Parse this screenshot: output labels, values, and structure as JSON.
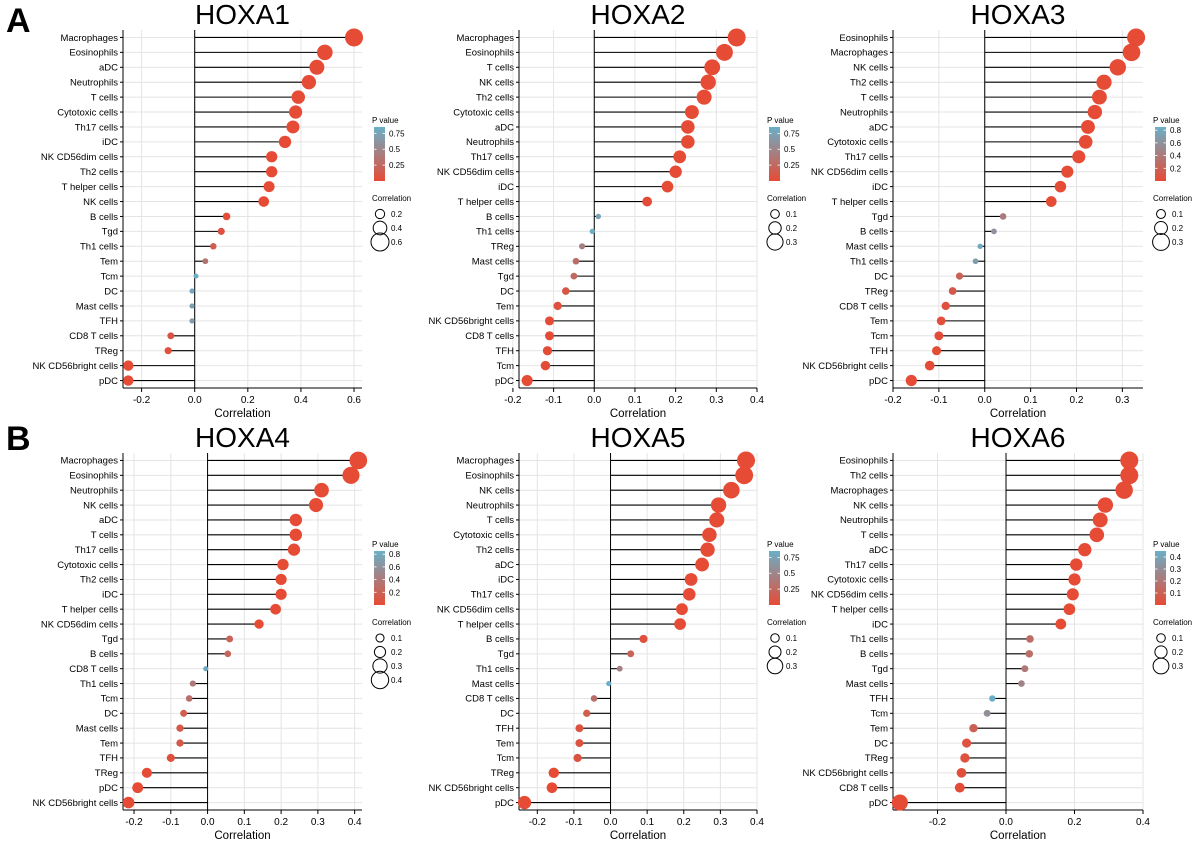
{
  "section_labels": [
    "A",
    "B"
  ],
  "p_value_legend_title": "P value",
  "correlation_legend_title": "Correlation",
  "colors": {
    "low_p": "#e64b35",
    "high_p": "#6aafc7",
    "stem": "#000000",
    "grid": "#e4e4e4"
  },
  "chart_data": [
    {
      "type": "lollipop",
      "title": "HOXA1",
      "xlabel": "Correlation",
      "xlim": [
        -0.27,
        0.63
      ],
      "xticks": [
        -0.2,
        0.0,
        0.2,
        0.4,
        0.6
      ],
      "pvalue_ticks": [
        0.75,
        0.5,
        0.25
      ],
      "pvalue_max": 0.85,
      "size_ticks": [
        0.2,
        0.4,
        0.6
      ],
      "size_max": 0.6,
      "points": [
        {
          "cell": "Macrophages",
          "correlation": 0.6,
          "p": 0.0
        },
        {
          "cell": "Eosinophils",
          "correlation": 0.49,
          "p": 0.0
        },
        {
          "cell": "aDC",
          "correlation": 0.46,
          "p": 0.0
        },
        {
          "cell": "Neutrophils",
          "correlation": 0.43,
          "p": 0.0
        },
        {
          "cell": "T cells",
          "correlation": 0.39,
          "p": 0.0
        },
        {
          "cell": "Cytotoxic cells",
          "correlation": 0.38,
          "p": 0.0
        },
        {
          "cell": "Th17 cells",
          "correlation": 0.37,
          "p": 0.0
        },
        {
          "cell": "iDC",
          "correlation": 0.34,
          "p": 0.0
        },
        {
          "cell": "NK CD56dim cells",
          "correlation": 0.29,
          "p": 0.0
        },
        {
          "cell": "Th2 cells",
          "correlation": 0.29,
          "p": 0.0
        },
        {
          "cell": "T helper cells",
          "correlation": 0.28,
          "p": 0.0
        },
        {
          "cell": "NK cells",
          "correlation": 0.26,
          "p": 0.0
        },
        {
          "cell": "B cells",
          "correlation": 0.12,
          "p": 0.02
        },
        {
          "cell": "Tgd",
          "correlation": 0.1,
          "p": 0.05
        },
        {
          "cell": "Th1 cells",
          "correlation": 0.07,
          "p": 0.15
        },
        {
          "cell": "Tem",
          "correlation": 0.04,
          "p": 0.35
        },
        {
          "cell": "Tcm",
          "correlation": 0.005,
          "p": 0.85
        },
        {
          "cell": "DC",
          "correlation": -0.01,
          "p": 0.78
        },
        {
          "cell": "Mast cells",
          "correlation": -0.01,
          "p": 0.72
        },
        {
          "cell": "TFH",
          "correlation": -0.01,
          "p": 0.68
        },
        {
          "cell": "CD8 T cells",
          "correlation": -0.09,
          "p": 0.08
        },
        {
          "cell": "TReg",
          "correlation": -0.1,
          "p": 0.04
        },
        {
          "cell": "NK CD56bright cells",
          "correlation": -0.25,
          "p": 0.0
        },
        {
          "cell": "pDC",
          "correlation": -0.25,
          "p": 0.0
        }
      ]
    },
    {
      "type": "lollipop",
      "title": "HOXA2",
      "xlabel": "Correlation",
      "xlim": [
        -0.185,
        0.4
      ],
      "xticks": [
        -0.2,
        -0.1,
        0.0,
        0.1,
        0.2,
        0.3,
        0.4
      ],
      "pvalue_ticks": [
        0.75,
        0.5,
        0.25
      ],
      "pvalue_max": 0.85,
      "size_ticks": [
        0.1,
        0.2,
        0.3
      ],
      "size_max": 0.35,
      "points": [
        {
          "cell": "Macrophages",
          "correlation": 0.35,
          "p": 0.0
        },
        {
          "cell": "Eosinophils",
          "correlation": 0.32,
          "p": 0.0
        },
        {
          "cell": "T cells",
          "correlation": 0.29,
          "p": 0.0
        },
        {
          "cell": "NK cells",
          "correlation": 0.28,
          "p": 0.0
        },
        {
          "cell": "Th2 cells",
          "correlation": 0.27,
          "p": 0.0
        },
        {
          "cell": "Cytotoxic cells",
          "correlation": 0.24,
          "p": 0.0
        },
        {
          "cell": "aDC",
          "correlation": 0.23,
          "p": 0.0
        },
        {
          "cell": "Neutrophils",
          "correlation": 0.23,
          "p": 0.0
        },
        {
          "cell": "Th17 cells",
          "correlation": 0.21,
          "p": 0.0
        },
        {
          "cell": "NK CD56dim cells",
          "correlation": 0.2,
          "p": 0.0
        },
        {
          "cell": "iDC",
          "correlation": 0.18,
          "p": 0.0
        },
        {
          "cell": "T helper cells",
          "correlation": 0.13,
          "p": 0.01
        },
        {
          "cell": "B cells",
          "correlation": 0.01,
          "p": 0.75
        },
        {
          "cell": "Th1 cells",
          "correlation": -0.005,
          "p": 0.85
        },
        {
          "cell": "TReg",
          "correlation": -0.03,
          "p": 0.45
        },
        {
          "cell": "Mast cells",
          "correlation": -0.045,
          "p": 0.3
        },
        {
          "cell": "Tgd",
          "correlation": -0.05,
          "p": 0.25
        },
        {
          "cell": "DC",
          "correlation": -0.07,
          "p": 0.1
        },
        {
          "cell": "Tem",
          "correlation": -0.09,
          "p": 0.05
        },
        {
          "cell": "NK CD56bright cells",
          "correlation": -0.11,
          "p": 0.01
        },
        {
          "cell": "CD8 T cells",
          "correlation": -0.11,
          "p": 0.01
        },
        {
          "cell": "TFH",
          "correlation": -0.115,
          "p": 0.01
        },
        {
          "cell": "Tcm",
          "correlation": -0.12,
          "p": 0.01
        },
        {
          "cell": "pDC",
          "correlation": -0.165,
          "p": 0.0
        }
      ]
    },
    {
      "type": "lollipop",
      "title": "HOXA3",
      "xlabel": "Correlation",
      "xlim": [
        -0.2,
        0.345
      ],
      "xticks": [
        -0.2,
        -0.1,
        0.0,
        0.1,
        0.2,
        0.3
      ],
      "pvalue_ticks": [
        0.8,
        0.6,
        0.4,
        0.2
      ],
      "pvalue_max": 0.85,
      "size_ticks": [
        0.1,
        0.2,
        0.3
      ],
      "size_max": 0.33,
      "points": [
        {
          "cell": "Eosinophils",
          "correlation": 0.33,
          "p": 0.0
        },
        {
          "cell": "Macrophages",
          "correlation": 0.32,
          "p": 0.0
        },
        {
          "cell": "NK cells",
          "correlation": 0.29,
          "p": 0.0
        },
        {
          "cell": "Th2 cells",
          "correlation": 0.26,
          "p": 0.0
        },
        {
          "cell": "T cells",
          "correlation": 0.25,
          "p": 0.0
        },
        {
          "cell": "Neutrophils",
          "correlation": 0.24,
          "p": 0.0
        },
        {
          "cell": "aDC",
          "correlation": 0.225,
          "p": 0.0
        },
        {
          "cell": "Cytotoxic cells",
          "correlation": 0.22,
          "p": 0.0
        },
        {
          "cell": "Th17 cells",
          "correlation": 0.205,
          "p": 0.0
        },
        {
          "cell": "NK CD56dim cells",
          "correlation": 0.18,
          "p": 0.0
        },
        {
          "cell": "iDC",
          "correlation": 0.165,
          "p": 0.0
        },
        {
          "cell": "T helper cells",
          "correlation": 0.145,
          "p": 0.0
        },
        {
          "cell": "Tgd",
          "correlation": 0.04,
          "p": 0.4
        },
        {
          "cell": "B cells",
          "correlation": 0.02,
          "p": 0.6
        },
        {
          "cell": "Mast cells",
          "correlation": -0.01,
          "p": 0.8
        },
        {
          "cell": "Th1 cells",
          "correlation": -0.02,
          "p": 0.7
        },
        {
          "cell": "DC",
          "correlation": -0.055,
          "p": 0.2
        },
        {
          "cell": "TReg",
          "correlation": -0.07,
          "p": 0.12
        },
        {
          "cell": "CD8 T cells",
          "correlation": -0.085,
          "p": 0.05
        },
        {
          "cell": "Tem",
          "correlation": -0.095,
          "p": 0.03
        },
        {
          "cell": "Tcm",
          "correlation": -0.1,
          "p": 0.02
        },
        {
          "cell": "TFH",
          "correlation": -0.105,
          "p": 0.02
        },
        {
          "cell": "NK CD56bright cells",
          "correlation": -0.12,
          "p": 0.01
        },
        {
          "cell": "pDC",
          "correlation": -0.16,
          "p": 0.0
        }
      ]
    },
    {
      "type": "lollipop",
      "title": "HOXA4",
      "xlabel": "Correlation",
      "xlim": [
        -0.23,
        0.42
      ],
      "xticks": [
        -0.2,
        -0.1,
        0.0,
        0.1,
        0.2,
        0.3,
        0.4
      ],
      "pvalue_ticks": [
        0.8,
        0.6,
        0.4,
        0.2
      ],
      "pvalue_max": 0.85,
      "size_ticks": [
        0.1,
        0.2,
        0.3,
        0.4
      ],
      "size_max": 0.42,
      "points": [
        {
          "cell": "Macrophages",
          "correlation": 0.41,
          "p": 0.0
        },
        {
          "cell": "Eosinophils",
          "correlation": 0.39,
          "p": 0.0
        },
        {
          "cell": "Neutrophils",
          "correlation": 0.31,
          "p": 0.0
        },
        {
          "cell": "NK cells",
          "correlation": 0.295,
          "p": 0.0
        },
        {
          "cell": "aDC",
          "correlation": 0.24,
          "p": 0.0
        },
        {
          "cell": "T cells",
          "correlation": 0.24,
          "p": 0.0
        },
        {
          "cell": "Th17 cells",
          "correlation": 0.235,
          "p": 0.0
        },
        {
          "cell": "Cytotoxic cells",
          "correlation": 0.205,
          "p": 0.0
        },
        {
          "cell": "Th2 cells",
          "correlation": 0.2,
          "p": 0.0
        },
        {
          "cell": "iDC",
          "correlation": 0.2,
          "p": 0.0
        },
        {
          "cell": "T helper cells",
          "correlation": 0.185,
          "p": 0.0
        },
        {
          "cell": "NK CD56dim cells",
          "correlation": 0.14,
          "p": 0.0
        },
        {
          "cell": "Tgd",
          "correlation": 0.06,
          "p": 0.2
        },
        {
          "cell": "B cells",
          "correlation": 0.055,
          "p": 0.22
        },
        {
          "cell": "CD8 T cells",
          "correlation": -0.005,
          "p": 0.82
        },
        {
          "cell": "Th1 cells",
          "correlation": -0.04,
          "p": 0.4
        },
        {
          "cell": "Tcm",
          "correlation": -0.05,
          "p": 0.3
        },
        {
          "cell": "DC",
          "correlation": -0.065,
          "p": 0.15
        },
        {
          "cell": "Mast cells",
          "correlation": -0.075,
          "p": 0.12
        },
        {
          "cell": "Tem",
          "correlation": -0.075,
          "p": 0.12
        },
        {
          "cell": "TFH",
          "correlation": -0.1,
          "p": 0.05
        },
        {
          "cell": "TReg",
          "correlation": -0.165,
          "p": 0.0
        },
        {
          "cell": "pDC",
          "correlation": -0.19,
          "p": 0.0
        },
        {
          "cell": "NK CD56bright cells",
          "correlation": -0.215,
          "p": 0.0
        }
      ]
    },
    {
      "type": "lollipop",
      "title": "HOXA5",
      "xlabel": "Correlation",
      "xlim": [
        -0.25,
        0.4
      ],
      "xticks": [
        -0.2,
        -0.1,
        0.0,
        0.1,
        0.2,
        0.3,
        0.4
      ],
      "pvalue_ticks": [
        0.75,
        0.5,
        0.25
      ],
      "pvalue_max": 0.85,
      "size_ticks": [
        0.1,
        0.2,
        0.3
      ],
      "size_max": 0.37,
      "points": [
        {
          "cell": "Macrophages",
          "correlation": 0.37,
          "p": 0.0
        },
        {
          "cell": "Eosinophils",
          "correlation": 0.365,
          "p": 0.0
        },
        {
          "cell": "NK cells",
          "correlation": 0.33,
          "p": 0.0
        },
        {
          "cell": "Neutrophils",
          "correlation": 0.295,
          "p": 0.0
        },
        {
          "cell": "T cells",
          "correlation": 0.29,
          "p": 0.0
        },
        {
          "cell": "Cytotoxic cells",
          "correlation": 0.27,
          "p": 0.0
        },
        {
          "cell": "Th2 cells",
          "correlation": 0.265,
          "p": 0.0
        },
        {
          "cell": "aDC",
          "correlation": 0.25,
          "p": 0.0
        },
        {
          "cell": "iDC",
          "correlation": 0.22,
          "p": 0.0
        },
        {
          "cell": "Th17 cells",
          "correlation": 0.215,
          "p": 0.0
        },
        {
          "cell": "NK CD56dim cells",
          "correlation": 0.195,
          "p": 0.0
        },
        {
          "cell": "T helper cells",
          "correlation": 0.19,
          "p": 0.0
        },
        {
          "cell": "B cells",
          "correlation": 0.09,
          "p": 0.05
        },
        {
          "cell": "Tgd",
          "correlation": 0.055,
          "p": 0.2
        },
        {
          "cell": "Th1 cells",
          "correlation": 0.025,
          "p": 0.45
        },
        {
          "cell": "Mast cells",
          "correlation": -0.005,
          "p": 0.85
        },
        {
          "cell": "CD8 T cells",
          "correlation": -0.045,
          "p": 0.3
        },
        {
          "cell": "DC",
          "correlation": -0.065,
          "p": 0.15
        },
        {
          "cell": "TFH",
          "correlation": -0.085,
          "p": 0.07
        },
        {
          "cell": "Tem",
          "correlation": -0.085,
          "p": 0.07
        },
        {
          "cell": "Tcm",
          "correlation": -0.09,
          "p": 0.06
        },
        {
          "cell": "TReg",
          "correlation": -0.155,
          "p": 0.0
        },
        {
          "cell": "NK CD56bright cells",
          "correlation": -0.16,
          "p": 0.0
        },
        {
          "cell": "pDC",
          "correlation": -0.235,
          "p": 0.0
        }
      ]
    },
    {
      "type": "lollipop",
      "title": "HOXA6",
      "xlabel": "Correlation",
      "xlim": [
        -0.33,
        0.4
      ],
      "xticks": [
        -0.2,
        0.0,
        0.2,
        0.4
      ],
      "pvalue_ticks": [
        0.4,
        0.3,
        0.2,
        0.1
      ],
      "pvalue_max": 0.45,
      "size_ticks": [
        0.1,
        0.2,
        0.3
      ],
      "size_max": 0.36,
      "points": [
        {
          "cell": "Eosinophils",
          "correlation": 0.36,
          "p": 0.0
        },
        {
          "cell": "Th2 cells",
          "correlation": 0.36,
          "p": 0.0
        },
        {
          "cell": "Macrophages",
          "correlation": 0.345,
          "p": 0.0
        },
        {
          "cell": "NK cells",
          "correlation": 0.29,
          "p": 0.0
        },
        {
          "cell": "Neutrophils",
          "correlation": 0.275,
          "p": 0.0
        },
        {
          "cell": "T cells",
          "correlation": 0.265,
          "p": 0.0
        },
        {
          "cell": "aDC",
          "correlation": 0.23,
          "p": 0.0
        },
        {
          "cell": "Th17 cells",
          "correlation": 0.205,
          "p": 0.0
        },
        {
          "cell": "Cytotoxic cells",
          "correlation": 0.2,
          "p": 0.0
        },
        {
          "cell": "NK CD56dim cells",
          "correlation": 0.195,
          "p": 0.0
        },
        {
          "cell": "T helper cells",
          "correlation": 0.185,
          "p": 0.0
        },
        {
          "cell": "iDC",
          "correlation": 0.16,
          "p": 0.0
        },
        {
          "cell": "Th1 cells",
          "correlation": 0.07,
          "p": 0.15
        },
        {
          "cell": "B cells",
          "correlation": 0.068,
          "p": 0.16
        },
        {
          "cell": "Tgd",
          "correlation": 0.055,
          "p": 0.2
        },
        {
          "cell": "Mast cells",
          "correlation": 0.045,
          "p": 0.25
        },
        {
          "cell": "TFH",
          "correlation": -0.04,
          "p": 0.45
        },
        {
          "cell": "Tcm",
          "correlation": -0.055,
          "p": 0.3
        },
        {
          "cell": "Tem",
          "correlation": -0.095,
          "p": 0.1
        },
        {
          "cell": "DC",
          "correlation": -0.115,
          "p": 0.03
        },
        {
          "cell": "TReg",
          "correlation": -0.12,
          "p": 0.03
        },
        {
          "cell": "NK CD56bright cells",
          "correlation": -0.13,
          "p": 0.02
        },
        {
          "cell": "CD8 T cells",
          "correlation": -0.135,
          "p": 0.01
        },
        {
          "cell": "pDC",
          "correlation": -0.31,
          "p": 0.0
        }
      ]
    }
  ]
}
